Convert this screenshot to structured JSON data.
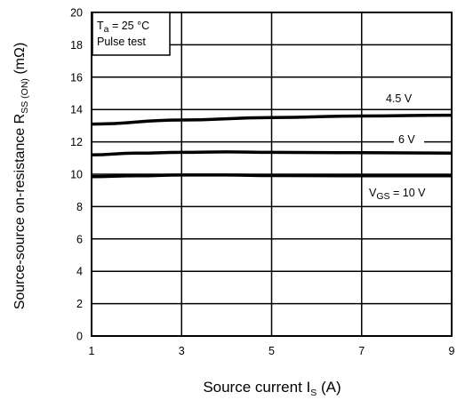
{
  "chart_data": {
    "type": "line",
    "xlabel": {
      "main": "Source current  I",
      "sub": "S",
      "unit": "  (A)"
    },
    "ylabel": {
      "main": "Source-source on-resistance  R",
      "sub": "SS (ON)",
      "unit": "  (mΩ)"
    },
    "xlim": [
      1,
      9
    ],
    "ylim": [
      0,
      20
    ],
    "x_ticks": [
      1,
      3,
      5,
      7,
      9
    ],
    "y_ticks": [
      0,
      2,
      4,
      6,
      8,
      10,
      12,
      14,
      16,
      18,
      20
    ],
    "grid": true,
    "conditions_box": {
      "line1_main": "T",
      "line1_sub": "a",
      "line1_rest": " = 25 °C",
      "line2": "Pulse test"
    },
    "series": [
      {
        "name": "4.5 V",
        "x": [
          1,
          3,
          5,
          7,
          9
        ],
        "y": [
          13.1,
          13.35,
          13.5,
          13.6,
          13.65
        ]
      },
      {
        "name": "6 V",
        "x": [
          1,
          2,
          3,
          4,
          5,
          7,
          9
        ],
        "y": [
          11.2,
          11.3,
          11.35,
          11.38,
          11.35,
          11.33,
          11.3
        ]
      },
      {
        "name_main": "V",
        "name_sub": "GS",
        "name_rest": " = 10 V",
        "x": [
          1,
          2,
          3,
          4,
          5,
          7,
          9
        ],
        "y": [
          9.85,
          9.9,
          9.95,
          9.95,
          9.92,
          9.9,
          9.9
        ]
      }
    ],
    "colors": {
      "line": "#000000",
      "grid": "#000000",
      "background": "#ffffff"
    }
  }
}
